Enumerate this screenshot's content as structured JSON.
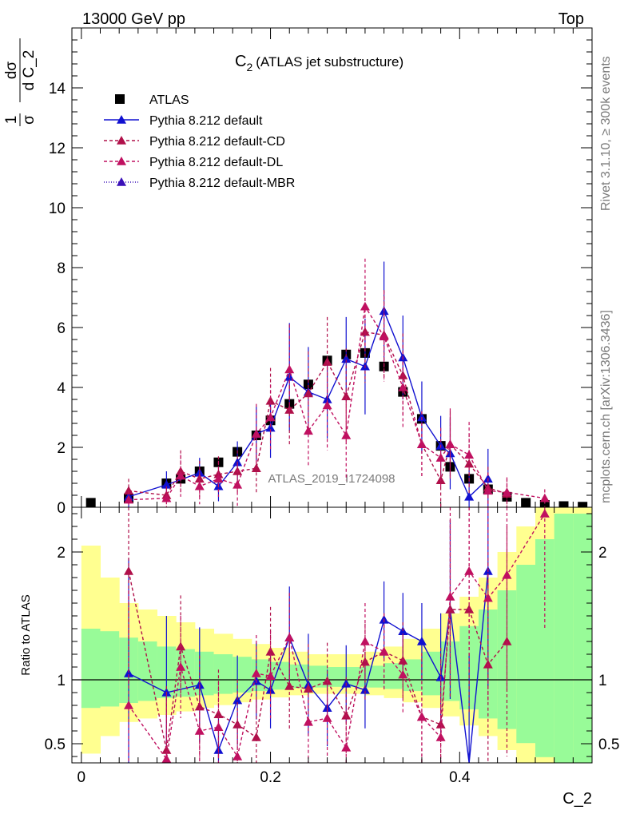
{
  "header": {
    "left": "13000 GeV pp",
    "right": "Top"
  },
  "side_text": {
    "rivet": "Rivet 3.1.10, ≥ 300k events",
    "mcplots": "mcplots.cern.ch [arXiv:1306.3436]"
  },
  "watermark": "ATLAS_2019_I1724098",
  "chart_data": {
    "type": "scatter",
    "title": "C",
    "title_subscript": "2",
    "title_rest": "(ATLAS jet substructure)",
    "ylabel_main": "1/σ dσ/d C_2",
    "ylabel_main_parts": {
      "frac1_num": "1",
      "frac1_den": "σ",
      "frac2_num": "dσ",
      "frac2_den": "d C_2"
    },
    "ylabel_ratio": "Ratio to ATLAS",
    "xlabel": "C_2",
    "xlim": [
      -0.01,
      0.54
    ],
    "ylim_main": [
      0,
      16
    ],
    "ylim_ratio": [
      0.35,
      2.35
    ],
    "x_ticks": [
      0,
      0.2,
      0.4
    ],
    "x_tick_labels": [
      "0",
      "0.2",
      "0.4"
    ],
    "y_ticks_main": [
      0,
      2,
      4,
      6,
      8,
      10,
      12,
      14
    ],
    "y_tick_labels_main": [
      "0",
      "2",
      "4",
      "6",
      "8",
      "10",
      "12",
      "14"
    ],
    "y_ticks_ratio": [
      0.5,
      1,
      2
    ],
    "y_tick_labels_ratio": [
      "0.5",
      "1",
      "2"
    ],
    "bin_edges": [
      0.0,
      0.02,
      0.04,
      0.06,
      0.08,
      0.1,
      0.12,
      0.14,
      0.16,
      0.18,
      0.2,
      0.22,
      0.24,
      0.26,
      0.28,
      0.3,
      0.32,
      0.34,
      0.36,
      0.38,
      0.4,
      0.42,
      0.44,
      0.46,
      0.48,
      0.5,
      0.52,
      0.54
    ],
    "x": [
      0.01,
      0.05,
      0.09,
      0.105,
      0.125,
      0.145,
      0.165,
      0.185,
      0.2,
      0.22,
      0.24,
      0.26,
      0.28,
      0.3,
      0.32,
      0.34,
      0.36,
      0.38,
      0.39,
      0.41,
      0.43,
      0.45,
      0.47,
      0.49,
      0.51,
      0.53
    ],
    "series": [
      {
        "name": "ATLAS",
        "style": "data",
        "color": "#000000",
        "x": [
          0.01,
          0.05,
          0.09,
          0.105,
          0.125,
          0.145,
          0.165,
          0.185,
          0.2,
          0.22,
          0.24,
          0.26,
          0.28,
          0.3,
          0.32,
          0.34,
          0.36,
          0.38,
          0.39,
          0.41,
          0.43,
          0.45,
          0.47,
          0.49,
          0.51,
          0.53
        ],
        "values": [
          0.15,
          0.3,
          0.8,
          0.95,
          1.2,
          1.5,
          1.85,
          2.4,
          2.9,
          3.45,
          4.1,
          4.9,
          5.1,
          5.15,
          4.7,
          3.85,
          2.95,
          2.05,
          1.35,
          0.95,
          0.6,
          0.35,
          0.15,
          0.08,
          0.04,
          0.02
        ]
      },
      {
        "name": "Pythia 8.212 default",
        "style": "solid",
        "color": "#1010d0",
        "x": [
          0.05,
          0.09,
          0.125,
          0.145,
          0.165,
          0.185,
          0.2,
          0.22,
          0.24,
          0.26,
          0.28,
          0.3,
          0.32,
          0.34,
          0.36,
          0.38,
          0.39,
          0.41,
          0.43
        ],
        "values": [
          0.35,
          0.75,
          1.15,
          0.7,
          1.5,
          2.45,
          2.65,
          4.35,
          3.85,
          3.6,
          4.95,
          4.7,
          6.55,
          5.0,
          3.0,
          2.05,
          1.8,
          0.35,
          0.95
        ],
        "errors": [
          0.35,
          0.45,
          0.5,
          0.5,
          0.7,
          0.9,
          1.0,
          1.8,
          1.5,
          1.3,
          1.4,
          1.6,
          1.65,
          1.4,
          1.2,
          1.0,
          1.2,
          0.9,
          1.0
        ],
        "ratio": [
          1.05,
          0.9,
          0.96,
          0.45,
          0.84,
          0.99,
          0.92,
          1.33,
          0.96,
          0.78,
          0.97,
          0.92,
          1.47,
          1.38,
          1.3,
          1.02,
          1.55,
          0.3,
          1.85
        ],
        "ratio_errors": [
          0.9,
          0.6,
          0.45,
          0.3,
          0.35,
          0.3,
          0.3,
          0.4,
          0.4,
          0.3,
          0.3,
          0.3,
          0.3,
          0.3,
          0.3,
          0.5,
          0.7,
          0.9,
          0.9
        ]
      },
      {
        "name": "Pythia 8.212 default-CD",
        "style": "dashed",
        "color": "#b0104a",
        "x": [
          0.05,
          0.09,
          0.105,
          0.125,
          0.145,
          0.165,
          0.185,
          0.2,
          0.22,
          0.24,
          0.26,
          0.28,
          0.3,
          0.32,
          0.34,
          0.36,
          0.38,
          0.39,
          0.41,
          0.43,
          0.45
        ],
        "values": [
          0.55,
          0.4,
          1.2,
          0.95,
          1.1,
          1.2,
          1.3,
          3.55,
          3.25,
          3.8,
          4.85,
          3.7,
          5.85,
          5.75,
          4.4,
          2.1,
          0.9,
          2.1,
          1.45,
          0.65,
          0.45
        ],
        "errors": [
          0.4,
          0.3,
          0.7,
          0.6,
          0.6,
          0.7,
          0.8,
          1.1,
          1.2,
          1.4,
          1.5,
          1.6,
          1.7,
          1.5,
          1.4,
          1.1,
          0.9,
          1.1,
          1.0,
          0.7,
          0.5
        ],
        "ratio": [
          1.85,
          0.45,
          1.26,
          0.79,
          0.73,
          0.65,
          0.55,
          1.22,
          0.95,
          0.93,
          0.99,
          0.72,
          1.14,
          1.22,
          1.15,
          0.71,
          0.65,
          1.55,
          1.55,
          1.12,
          1.3
        ],
        "ratio_errors": [
          0.9,
          0.5,
          0.4,
          0.4,
          0.35,
          0.35,
          0.3,
          0.35,
          0.35,
          0.35,
          0.3,
          0.3,
          0.3,
          0.3,
          0.3,
          0.5,
          0.6,
          0.7,
          0.8,
          0.8,
          0.9
        ]
      },
      {
        "name": "Pythia 8.212 default-DL",
        "style": "dashed",
        "color": "#c01060",
        "x": [
          0.05,
          0.09,
          0.105,
          0.125,
          0.145,
          0.165,
          0.185,
          0.2,
          0.22,
          0.24,
          0.26,
          0.28,
          0.3,
          0.32,
          0.34,
          0.36,
          0.38,
          0.39,
          0.41,
          0.43,
          0.45,
          0.49
        ],
        "values": [
          0.25,
          0.3,
          1.05,
          0.7,
          0.95,
          0.75,
          2.45,
          3.0,
          4.6,
          2.55,
          3.4,
          2.4,
          6.7,
          5.7,
          4.0,
          2.1,
          1.65,
          2.1,
          1.75,
          0.55,
          0.5,
          0.3
        ],
        "errors": [
          0.3,
          0.3,
          0.7,
          0.6,
          0.6,
          0.7,
          1.0,
          1.1,
          1.5,
          1.2,
          1.5,
          1.5,
          1.6,
          1.5,
          1.4,
          1.1,
          1.0,
          1.2,
          1.1,
          0.6,
          0.5,
          0.3
        ],
        "ratio": [
          0.8,
          0.38,
          1.1,
          0.6,
          0.63,
          0.4,
          1.05,
          1.03,
          1.33,
          0.67,
          0.7,
          0.47,
          1.3,
          1.22,
          1.04,
          0.71,
          0.55,
          1.65,
          1.85,
          1.64,
          1.82,
          2.3
        ],
        "ratio_errors": [
          0.9,
          0.5,
          0.4,
          0.4,
          0.35,
          0.35,
          0.3,
          0.35,
          0.35,
          0.35,
          0.3,
          0.3,
          0.3,
          0.3,
          0.3,
          0.5,
          0.6,
          0.7,
          0.8,
          0.8,
          0.9,
          0.9
        ]
      },
      {
        "name": "Pythia 8.212 default-MBR",
        "style": "dotted",
        "color": "#3a10b8",
        "x": [],
        "values": []
      }
    ],
    "bands": {
      "green_halfwidth": [
        0.4,
        0.38,
        0.33,
        0.3,
        0.26,
        0.24,
        0.22,
        0.2,
        0.18,
        0.16,
        0.14,
        0.12,
        0.11,
        0.1,
        0.1,
        0.11,
        0.13,
        0.16,
        0.22,
        0.3,
        0.42,
        0.55,
        0.7,
        0.9,
        1.1,
        1.3,
        1.3
      ],
      "yellow_halfwidth": [
        1.05,
        0.8,
        0.6,
        0.55,
        0.5,
        0.45,
        0.4,
        0.36,
        0.32,
        0.28,
        0.25,
        0.22,
        0.2,
        0.2,
        0.2,
        0.22,
        0.26,
        0.32,
        0.4,
        0.52,
        0.65,
        0.8,
        1.0,
        1.2,
        1.4,
        1.6,
        1.6
      ]
    },
    "legend_position": "top-left"
  }
}
